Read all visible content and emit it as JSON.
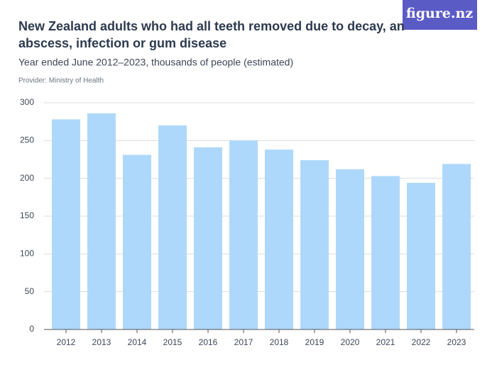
{
  "logo": "figure.nz",
  "chart_data": {
    "type": "bar",
    "title": [
      "New Zealand adults who had all teeth removed due to decay, an",
      "abscess, infection or gum disease"
    ],
    "subtitle": "Year ended June 2012–2023, thousands of people (estimated)",
    "provider": "Provider: Ministry of Health",
    "categories": [
      "2012",
      "2013",
      "2014",
      "2015",
      "2016",
      "2017",
      "2018",
      "2019",
      "2020",
      "2021",
      "2022",
      "2023"
    ],
    "values": [
      278,
      286,
      231,
      270,
      241,
      250,
      238,
      224,
      212,
      203,
      194,
      219
    ],
    "color": "#add8fb",
    "ylim": [
      0,
      300
    ],
    "yticks": [
      0,
      50,
      100,
      150,
      200,
      250,
      300
    ],
    "grid": true
  }
}
